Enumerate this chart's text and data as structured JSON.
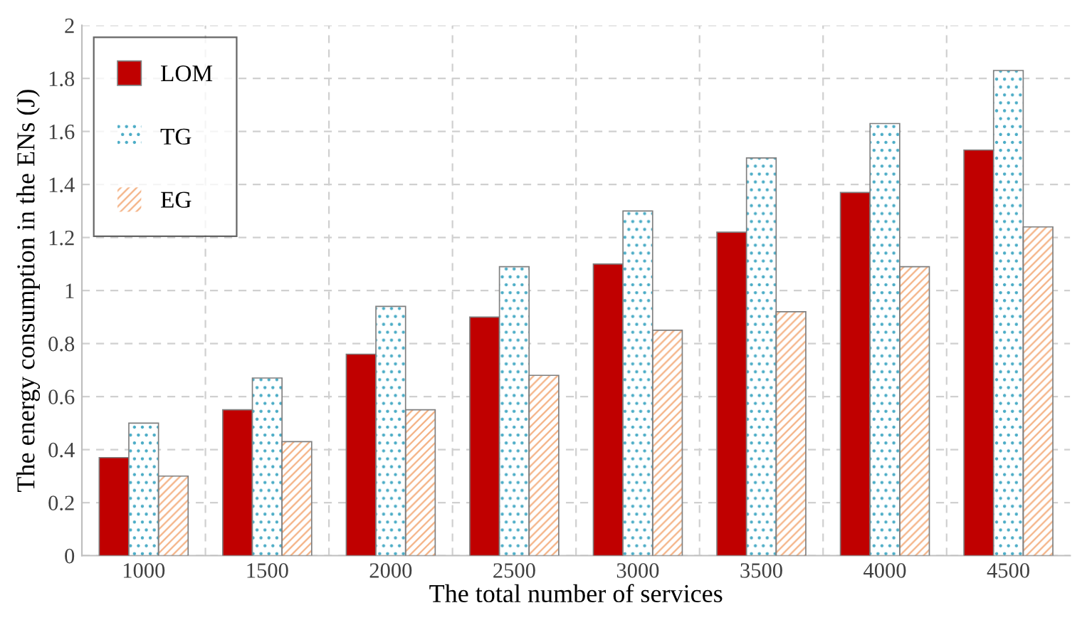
{
  "chart_data": {
    "type": "bar",
    "xlabel": "The total number of services",
    "ylabel": "The energy consumption in the ENs (J)",
    "categories": [
      "1000",
      "1500",
      "2000",
      "2500",
      "3000",
      "3500",
      "4000",
      "4500"
    ],
    "series": [
      {
        "name": "LOM",
        "color": "#c00000",
        "values": [
          0.37,
          0.55,
          0.76,
          0.9,
          1.1,
          1.22,
          1.37,
          1.53
        ]
      },
      {
        "name": "TG",
        "color": "#4bacc6",
        "values": [
          0.5,
          0.67,
          0.94,
          1.09,
          1.3,
          1.5,
          1.63,
          1.83
        ]
      },
      {
        "name": "EG",
        "color": "#f4b183",
        "values": [
          0.3,
          0.43,
          0.55,
          0.68,
          0.85,
          0.92,
          1.09,
          1.24
        ]
      }
    ],
    "ylim": [
      0,
      2
    ],
    "yticks": [
      0,
      0.2,
      0.4,
      0.6,
      0.8,
      1,
      1.2,
      1.4,
      1.6,
      1.8,
      2
    ],
    "grid": true,
    "legend": "top left"
  }
}
